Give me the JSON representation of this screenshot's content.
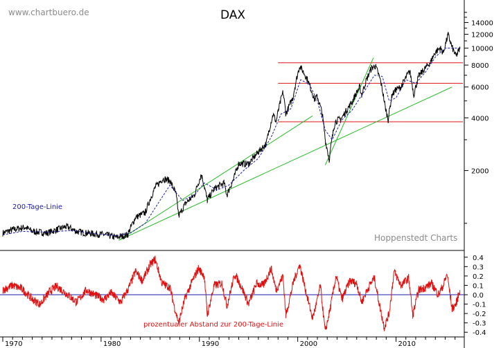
{
  "watermark": "www.chartbuero.de",
  "credit": "Hoppenstedt Charts",
  "chart_data": [
    {
      "type": "line",
      "title": "DAX",
      "y_scale": "log",
      "ylim": [
        700,
        17500
      ],
      "xlim": [
        1970.0,
        2016.8
      ],
      "y_ticks": [
        {
          "value": 2000,
          "label": "2000"
        },
        {
          "value": 4000,
          "label": "4000"
        },
        {
          "value": 6000,
          "label": "6000"
        },
        {
          "value": 8000,
          "label": "8000"
        },
        {
          "value": 10000,
          "label": "10000"
        },
        {
          "value": 12000,
          "label": "12000"
        },
        {
          "value": 14000,
          "label": "14000"
        }
      ],
      "y_minor_ticks": [
        1000,
        3000,
        5000,
        7000,
        9000,
        11000,
        13000,
        15000,
        16000
      ],
      "series": [
        {
          "name": "DAX",
          "color": "#000000",
          "x": [
            1970.0,
            1971.0,
            1972.3,
            1973.0,
            1974.5,
            1975.5,
            1976.5,
            1977.5,
            1978.5,
            1979.5,
            1980.5,
            1981.5,
            1982.7,
            1983.5,
            1984.5,
            1985.5,
            1986.3,
            1987.0,
            1987.6,
            1987.9,
            1988.6,
            1989.5,
            1990.2,
            1990.8,
            1991.5,
            1992.5,
            1992.8,
            1993.5,
            1994.0,
            1995.0,
            1996.0,
            1996.8,
            1997.5,
            1997.8,
            1998.5,
            1998.8,
            1999.5,
            2000.2,
            2000.9,
            2001.7,
            2002.0,
            2002.5,
            2002.8,
            2003.2,
            2003.8,
            2004.5,
            2005.5,
            2006.3,
            2006.5,
            2007.0,
            2007.5,
            2007.9,
            2008.4,
            2008.9,
            2009.2,
            2009.6,
            2010.0,
            2010.5,
            2011.4,
            2011.8,
            2012.3,
            2012.9,
            2013.5,
            2014.0,
            2014.5,
            2014.8,
            2015.3,
            2015.7,
            2016.1,
            2016.5
          ],
          "y": [
            880,
            920,
            950,
            900,
            880,
            920,
            960,
            900,
            880,
            870,
            860,
            830,
            860,
            1080,
            1150,
            1600,
            1800,
            1750,
            1480,
            1100,
            1300,
            1450,
            1900,
            1350,
            1570,
            1700,
            1450,
            1800,
            2200,
            2180,
            2550,
            2850,
            4200,
            3800,
            5600,
            4200,
            5200,
            7900,
            6800,
            5100,
            5300,
            4200,
            3000,
            2300,
            3800,
            4000,
            4900,
            6000,
            5400,
            6600,
            7700,
            7900,
            6600,
            4600,
            3900,
            5400,
            5800,
            6000,
            7400,
            5400,
            6900,
            7600,
            8300,
            9500,
            10000,
            9400,
            11900,
            10100,
            9000,
            9900
          ]
        },
        {
          "name": "200-Tage-Linie",
          "label": "200-Tage-Linie",
          "color": "#1a1aa8",
          "dashed": true,
          "x": [
            1970.0,
            1972.0,
            1974.5,
            1977.0,
            1979.5,
            1981.5,
            1983.0,
            1984.5,
            1985.8,
            1987.0,
            1988.3,
            1989.5,
            1990.5,
            1991.8,
            1993.0,
            1994.5,
            1996.0,
            1997.3,
            1998.3,
            1999.3,
            2000.3,
            2001.2,
            2002.0,
            2002.8,
            2003.5,
            2004.5,
            2005.5,
            2006.8,
            2007.8,
            2008.6,
            2009.3,
            2010.0,
            2011.0,
            2012.0,
            2013.0,
            2014.0,
            2015.0,
            2016.5
          ],
          "y": [
            860,
            900,
            890,
            910,
            870,
            850,
            880,
            1000,
            1300,
            1650,
            1350,
            1450,
            1700,
            1550,
            1650,
            2000,
            2350,
            3100,
            4200,
            4500,
            6600,
            6200,
            5000,
            3400,
            3000,
            3900,
            4400,
            5700,
            7000,
            6900,
            5000,
            5200,
            6600,
            6300,
            7300,
            8900,
            10000,
            10000
          ]
        }
      ],
      "reference_lines": [
        {
          "kind": "horizontal",
          "color": "#e01010",
          "x": [
            1998.0,
            2016.8
          ],
          "y": 8250
        },
        {
          "kind": "horizontal",
          "color": "#e01010",
          "x": [
            1998.0,
            2016.8
          ],
          "y": 6300
        },
        {
          "kind": "horizontal",
          "color": "#e01010",
          "x": [
            1998.0,
            2016.8
          ],
          "y": 3800
        },
        {
          "kind": "trend",
          "color": "#22bb22",
          "x": [
            1981.8,
            2001.5
          ],
          "y": [
            800,
            4100
          ]
        },
        {
          "kind": "trend",
          "color": "#22bb22",
          "x": [
            1981.8,
            2015.7
          ],
          "y": [
            800,
            6000
          ]
        },
        {
          "kind": "trend",
          "color": "#22bb22",
          "x": [
            2002.8,
            2007.7
          ],
          "y": [
            2150,
            8800
          ]
        }
      ],
      "grid": false
    },
    {
      "type": "line",
      "label": "prozentualer Abstand zur 200-Tage-Linie",
      "ylim": [
        -0.45,
        0.45
      ],
      "xlim": [
        1970.0,
        2016.8
      ],
      "y_ticks": [
        {
          "value": 0.4,
          "label": "0.4"
        },
        {
          "value": 0.3,
          "label": "0.3"
        },
        {
          "value": 0.2,
          "label": "0.2"
        },
        {
          "value": 0.1,
          "label": "0.1"
        },
        {
          "value": 0.0,
          "label": "0.0"
        },
        {
          "value": -0.1,
          "label": "-0.1"
        },
        {
          "value": -0.2,
          "label": "-0.2"
        },
        {
          "value": -0.3,
          "label": "-0.3"
        },
        {
          "value": -0.4,
          "label": "-0.4"
        }
      ],
      "x_ticks": [
        {
          "value": 1970,
          "label": "1970"
        },
        {
          "value": 1980,
          "label": "1980"
        },
        {
          "value": 1990,
          "label": "1990"
        },
        {
          "value": 2000,
          "label": "2000"
        },
        {
          "value": 2010,
          "label": "2010"
        }
      ],
      "zero_line": {
        "value": 0.0,
        "color": "#1a1aa8"
      },
      "series": [
        {
          "name": "prozentualer Abstand zur 200-Tage-Linie",
          "color": "#e01010",
          "x": [
            1970.0,
            1971.0,
            1972.0,
            1973.0,
            1973.8,
            1974.8,
            1975.5,
            1976.5,
            1977.5,
            1978.5,
            1979.3,
            1980.3,
            1981.0,
            1982.0,
            1982.8,
            1983.5,
            1984.2,
            1985.0,
            1985.5,
            1986.2,
            1987.0,
            1987.5,
            1987.9,
            1988.5,
            1989.3,
            1989.9,
            1990.5,
            1990.8,
            1991.5,
            1992.3,
            1992.8,
            1993.6,
            1994.3,
            1995.0,
            1995.8,
            1996.5,
            1997.3,
            1997.8,
            1998.5,
            1998.8,
            1999.6,
            2000.2,
            2000.8,
            2001.5,
            2001.9,
            2002.3,
            2002.8,
            2003.3,
            2003.9,
            2004.5,
            2005.3,
            2006.0,
            2006.5,
            2007.3,
            2007.8,
            2008.3,
            2008.8,
            2009.3,
            2009.8,
            2010.5,
            2011.3,
            2011.7,
            2012.3,
            2013.0,
            2013.6,
            2014.3,
            2014.8,
            2015.2,
            2015.7,
            2016.1,
            2016.5
          ],
          "y": [
            0.05,
            0.1,
            0.06,
            -0.05,
            -0.1,
            0.04,
            0.09,
            0.01,
            -0.08,
            0.05,
            0.0,
            -0.05,
            0.02,
            -0.08,
            0.07,
            0.25,
            0.15,
            0.32,
            0.38,
            0.12,
            0.08,
            -0.15,
            -0.3,
            -0.05,
            0.15,
            0.28,
            0.2,
            -0.22,
            0.1,
            0.12,
            -0.12,
            0.22,
            0.08,
            -0.1,
            0.12,
            0.1,
            0.28,
            0.05,
            0.2,
            -0.22,
            0.15,
            0.32,
            0.05,
            -0.25,
            -0.1,
            0.1,
            -0.4,
            -0.15,
            0.2,
            -0.05,
            0.15,
            0.12,
            -0.08,
            0.1,
            0.18,
            -0.1,
            -0.35,
            -0.2,
            0.25,
            0.1,
            0.18,
            -0.22,
            0.05,
            0.08,
            0.12,
            0.0,
            0.1,
            0.22,
            -0.15,
            -0.1,
            0.05
          ]
        }
      ],
      "grid": false
    }
  ]
}
